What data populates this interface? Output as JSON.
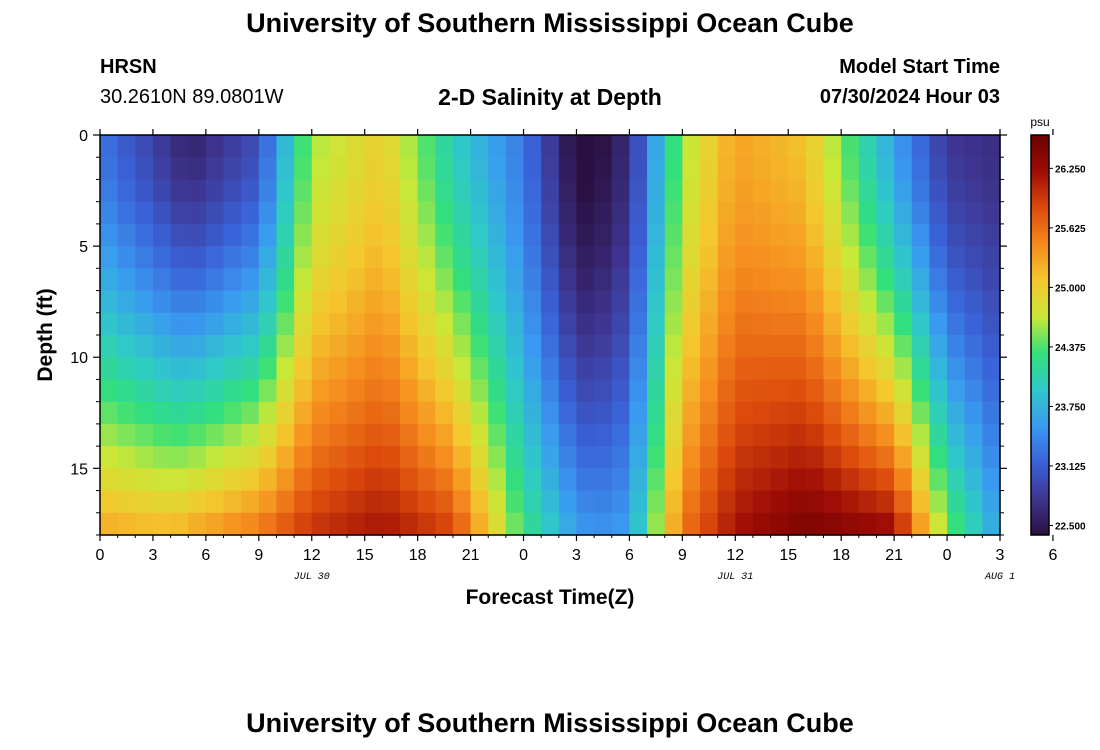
{
  "header": {
    "title": "University of Southern Mississippi Ocean Cube",
    "station": "HRSN",
    "coords": "30.2610N  89.0801W",
    "start_label": "Model Start Time",
    "start_value": "07/30/2024 Hour 03"
  },
  "footer": {
    "title": "University of Southern Mississippi Ocean Cube"
  },
  "colors": {
    "colormap": [
      "#2a1040",
      "#3e3590",
      "#3a62d8",
      "#3a9af0",
      "#2fc9c9",
      "#33e07a",
      "#c8e838",
      "#f4c82e",
      "#f58a1e",
      "#dc4a0c",
      "#9e0d06",
      "#6a0000"
    ]
  },
  "chart_data": {
    "type": "heatmap",
    "title": "2-D Salinity at Depth",
    "xlabel": "Forecast Time(Z)",
    "ylabel": "Depth (ft)",
    "colorbar_unit": "psu",
    "x_range_hours": [
      0,
      51
    ],
    "x_tick_labels": [
      "0",
      "3",
      "6",
      "9",
      "12",
      "15",
      "18",
      "21",
      "0",
      "3",
      "6",
      "9",
      "12",
      "15",
      "18",
      "21",
      "0",
      "3",
      "6"
    ],
    "date_labels": [
      {
        "text": "JUL 30",
        "at_hour": 12
      },
      {
        "text": "JUL 31",
        "at_hour": 36
      },
      {
        "text": "AUG 1",
        "at_hour": 51
      }
    ],
    "y_range_ft": [
      0,
      18
    ],
    "y_ticks": [
      "0",
      "5",
      "10",
      "15"
    ],
    "colorbar_range": [
      22.4,
      26.6
    ],
    "colorbar_ticks": [
      "26.250",
      "25.625",
      "25.000",
      "24.375",
      "23.750",
      "23.125",
      "22.500"
    ],
    "colorbar_tick_values": [
      26.25,
      25.625,
      25.0,
      24.375,
      23.75,
      23.125,
      22.5
    ],
    "profile_hours": [
      0,
      4,
      5,
      9,
      12,
      16,
      20,
      24,
      27,
      28,
      30,
      33,
      36,
      40,
      45,
      48,
      51
    ],
    "surface_salinity": [
      23.3,
      22.75,
      22.6,
      23.0,
      24.6,
      25.0,
      24.0,
      23.3,
      22.35,
      22.35,
      22.7,
      24.6,
      25.3,
      25.1,
      23.6,
      22.8,
      22.7
    ],
    "bottom_salinity": [
      25.3,
      25.2,
      25.3,
      25.6,
      26.0,
      26.2,
      25.9,
      24.3,
      23.6,
      23.5,
      23.6,
      25.6,
      26.2,
      26.5,
      26.3,
      24.5,
      23.6
    ]
  }
}
